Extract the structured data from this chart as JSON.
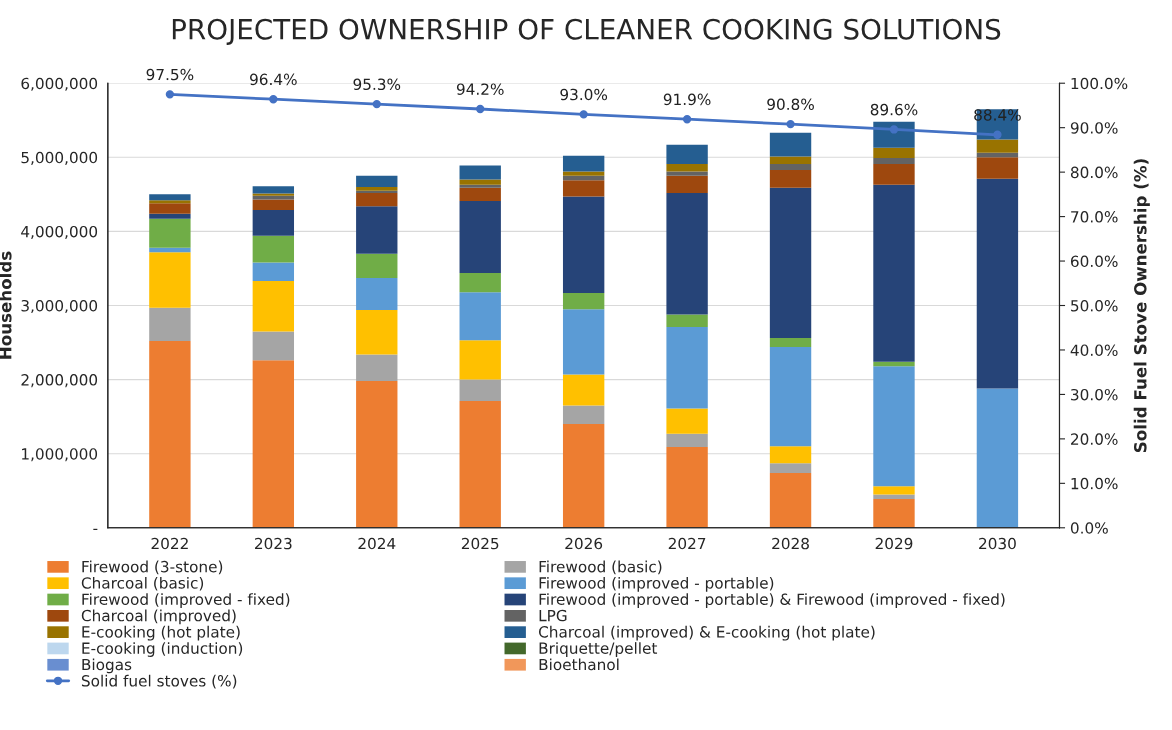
{
  "chart_data": {
    "type": "bar",
    "stacked": true,
    "title": "PROJECTED OWNERSHIP OF CLEANER COOKING SOLUTIONS",
    "ylabel": "Households",
    "y2label": "Solid Fuel Stove Ownership (%)",
    "categories": [
      "2022",
      "2023",
      "2024",
      "2025",
      "2026",
      "2027",
      "2028",
      "2029",
      "2030"
    ],
    "series": [
      {
        "name": "Firewood (3-stone)",
        "color": "#ed7d31",
        "values": [
          2520000,
          2260000,
          1980000,
          1710000,
          1400000,
          1090000,
          740000,
          390000,
          0
        ]
      },
      {
        "name": "Firewood (basic)",
        "color": "#a5a5a5",
        "values": [
          450000,
          390000,
          360000,
          290000,
          250000,
          180000,
          130000,
          60000,
          0
        ]
      },
      {
        "name": "Charcoal (basic)",
        "color": "#ffc000",
        "values": [
          750000,
          680000,
          600000,
          530000,
          420000,
          340000,
          230000,
          110000,
          0
        ]
      },
      {
        "name": "Firewood (improved - portable)",
        "color": "#5b9bd5",
        "values": [
          60000,
          250000,
          430000,
          650000,
          880000,
          1100000,
          1340000,
          1620000,
          1880000
        ]
      },
      {
        "name": "Firewood (improved - fixed)",
        "color": "#70ad47",
        "values": [
          390000,
          360000,
          330000,
          260000,
          220000,
          170000,
          120000,
          60000,
          0
        ]
      },
      {
        "name": "Firewood (improved - portable) & Firewood (improved - fixed)",
        "color": "#264478",
        "values": [
          70000,
          350000,
          640000,
          970000,
          1300000,
          1640000,
          2030000,
          2390000,
          2830000
        ]
      },
      {
        "name": "Charcoal (improved)",
        "color": "#9e480e",
        "values": [
          140000,
          140000,
          180000,
          180000,
          220000,
          230000,
          240000,
          280000,
          290000
        ]
      },
      {
        "name": "LPG",
        "color": "#636363",
        "values": [
          null,
          50000,
          30000,
          40000,
          60000,
          60000,
          80000,
          80000,
          60000
        ]
      },
      {
        "name": "E-cooking (hot plate)",
        "color": "#997300",
        "values": [
          40000,
          30000,
          50000,
          70000,
          60000,
          100000,
          100000,
          140000,
          180000
        ]
      },
      {
        "name": "Charcoal (improved) & E-cooking (hot plate)",
        "color": "#255e91",
        "values": [
          80000,
          100000,
          150000,
          190000,
          210000,
          260000,
          320000,
          350000,
          410000
        ]
      },
      {
        "name": "E-cooking (induction)",
        "color": "#bdd7ee",
        "values": [
          0,
          0,
          0,
          0,
          0,
          0,
          0,
          0,
          0
        ]
      },
      {
        "name": "Briquette/pellet",
        "color": "#43682b",
        "values": [
          0,
          0,
          0,
          0,
          0,
          0,
          0,
          0,
          0
        ]
      },
      {
        "name": "Biogas",
        "color": "#698ed0",
        "values": [
          0,
          0,
          0,
          0,
          0,
          0,
          0,
          0,
          0
        ]
      },
      {
        "name": "Bioethanol",
        "color": "#f1975a",
        "values": [
          0,
          0,
          0,
          0,
          0,
          0,
          0,
          0,
          0
        ]
      },
      {
        "name": "Solid fuel stoves (%)",
        "type": "line",
        "axis": "y2",
        "color": "#4472c4",
        "marker": "circle",
        "values": [
          97.5,
          96.4,
          95.3,
          94.2,
          93.0,
          91.9,
          90.8,
          89.6,
          88.4
        ],
        "value_labels": [
          "97.5%",
          "96.4%",
          "95.3%",
          "94.2%",
          "93.0%",
          "91.9%",
          "90.8%",
          "89.6%",
          "88.4%"
        ]
      }
    ],
    "ylim": [
      0,
      6000000
    ],
    "yticks": [
      {
        "value": 0,
        "label": "-"
      },
      {
        "value": 1000000,
        "label": "1,000,000"
      },
      {
        "value": 2000000,
        "label": "2,000,000"
      },
      {
        "value": 3000000,
        "label": "3,000,000"
      },
      {
        "value": 4000000,
        "label": "4,000,000"
      },
      {
        "value": 5000000,
        "label": "5,000,000"
      },
      {
        "value": 6000000,
        "label": "6,000,000"
      }
    ],
    "y2lim": [
      0,
      100
    ],
    "y2ticks": [
      {
        "value": 0,
        "label": "0.0%"
      },
      {
        "value": 10,
        "label": "10.0%"
      },
      {
        "value": 20,
        "label": "20.0%"
      },
      {
        "value": 30,
        "label": "30.0%"
      },
      {
        "value": 40,
        "label": "40.0%"
      },
      {
        "value": 50,
        "label": "50.0%"
      },
      {
        "value": 60,
        "label": "60.0%"
      },
      {
        "value": 70,
        "label": "70.0%"
      },
      {
        "value": 80,
        "label": "80.0%"
      },
      {
        "value": 90,
        "label": "90.0%"
      },
      {
        "value": 100,
        "label": "100.0%"
      }
    ],
    "grid": "y",
    "legend": "bottom"
  }
}
